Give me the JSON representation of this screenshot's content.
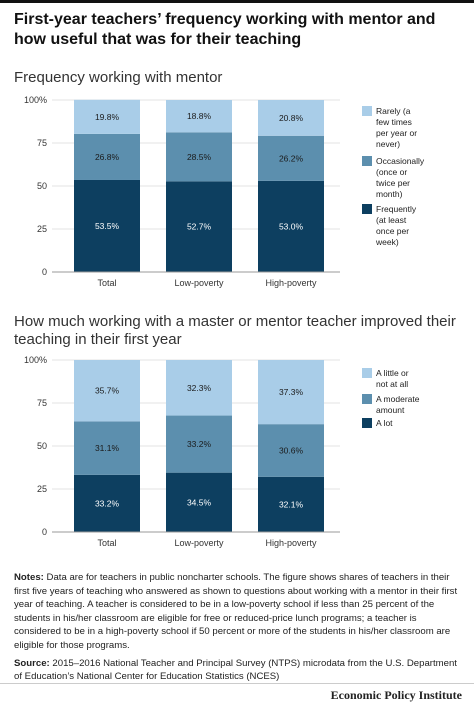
{
  "title": "First-year teachers’ frequency working with mentor and how useful that was for their teaching",
  "colors": {
    "light": "#a9cde8",
    "mid": "#5c8fae",
    "dark": "#0d3f60"
  },
  "chart_data": [
    {
      "type": "bar",
      "stacked": true,
      "title": "Frequency working with mentor",
      "categories": [
        "Total",
        "Low-poverty",
        "High-poverty"
      ],
      "yticks": [
        "0",
        "25",
        "50",
        "75",
        "100%"
      ],
      "ylim": [
        0,
        100
      ],
      "series": [
        {
          "name": "Frequently (at least once per week)",
          "values": [
            53.5,
            52.7,
            53.0
          ],
          "labels": [
            "53.5%",
            "52.7%",
            "53.0%"
          ],
          "color": "#0d3f60"
        },
        {
          "name": "Occasionally (once or twice per month)",
          "values": [
            26.8,
            28.5,
            26.2
          ],
          "labels": [
            "26.8%",
            "28.5%",
            "26.2%"
          ],
          "color": "#5c8fae"
        },
        {
          "name": "Rarely (a few times per year or never)",
          "values": [
            19.8,
            18.8,
            20.8
          ],
          "labels": [
            "19.8%",
            "18.8%",
            "20.8%"
          ],
          "color": "#a9cde8"
        }
      ],
      "legend": [
        {
          "lines": [
            "Rarely (a",
            "few times",
            "per year or",
            "never)"
          ],
          "color": "#a9cde8"
        },
        {
          "lines": [
            "Occasionally",
            "(once or",
            "twice per",
            "month)"
          ],
          "color": "#5c8fae"
        },
        {
          "lines": [
            "Frequently",
            "(at least",
            "once per",
            "week)"
          ],
          "color": "#0d3f60"
        }
      ]
    },
    {
      "type": "bar",
      "stacked": true,
      "title": "How much working with a master or mentor teacher improved their teaching in their first year",
      "categories": [
        "Total",
        "Low-poverty",
        "High-poverty"
      ],
      "yticks": [
        "0",
        "25",
        "50",
        "75",
        "100%"
      ],
      "ylim": [
        0,
        100
      ],
      "series": [
        {
          "name": "A lot",
          "values": [
            33.2,
            34.5,
            32.1
          ],
          "labels": [
            "33.2%",
            "34.5%",
            "32.1%"
          ],
          "color": "#0d3f60"
        },
        {
          "name": "A moderate amount",
          "values": [
            31.1,
            33.2,
            30.6
          ],
          "labels": [
            "31.1%",
            "33.2%",
            "30.6%"
          ],
          "color": "#5c8fae"
        },
        {
          "name": "A little or not at all",
          "values": [
            35.7,
            32.3,
            37.3
          ],
          "labels": [
            "35.7%",
            "32.3%",
            "37.3%"
          ],
          "color": "#a9cde8"
        }
      ],
      "legend": [
        {
          "lines": [
            "A little or",
            "not at all"
          ],
          "color": "#a9cde8"
        },
        {
          "lines": [
            "A moderate",
            "amount"
          ],
          "color": "#5c8fae"
        },
        {
          "lines": [
            "A lot"
          ],
          "color": "#0d3f60"
        }
      ]
    }
  ],
  "notes": {
    "label": "Notes:",
    "text": "Data are for teachers in public noncharter schools. The figure shows shares of teachers in their first five years of teaching who answered as shown to questions about working with a mentor in their first year of teaching. A teacher is considered to be in a low-poverty school if less than 25 percent of the students in his/her classroom are eligible for free or reduced-price lunch programs; a teacher is considered to be in a high-poverty school if 50 percent or more of the students in his/her classroom are eligible for those programs."
  },
  "source": {
    "label": "Source:",
    "text": "2015–2016 National Teacher and Principal Survey (NTPS) microdata from the U.S. Department of Education’s National Center for Education Statistics (NCES)"
  },
  "brand": "Economic Policy Institute"
}
